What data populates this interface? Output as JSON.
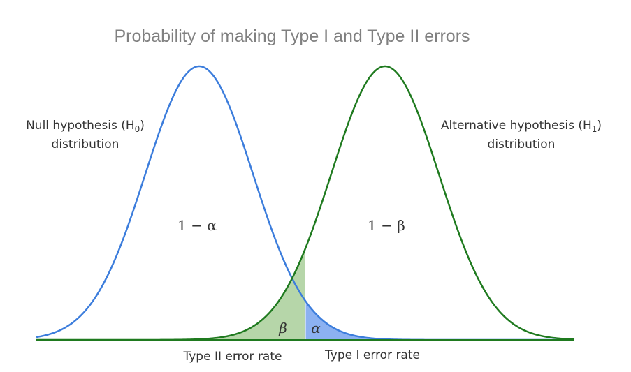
{
  "title": "Probability of making Type I and Type II errors",
  "null_label": {
    "text": "Null hypothesis (H",
    "subscript": "0",
    "suffix": ")",
    "line2": "distribution"
  },
  "alt_label": {
    "text": "Alternative hypothesis (H",
    "subscript": "1",
    "suffix": ")",
    "line2": "distribution"
  },
  "region_labels": {
    "null_body": "1 − α",
    "alt_body": "1 − β",
    "beta": "β",
    "alpha": "α"
  },
  "error_labels": {
    "type2": "Type II error rate",
    "type1": "Type I error rate"
  }
}
